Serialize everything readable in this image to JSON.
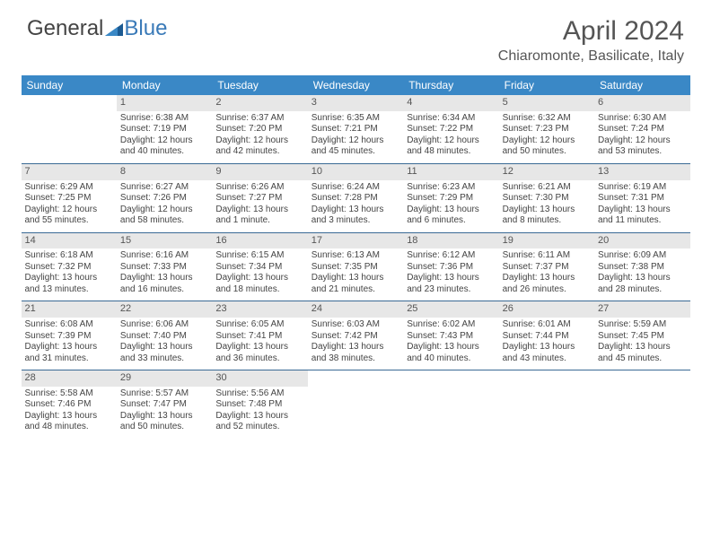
{
  "logo": {
    "part1": "General",
    "part2": "Blue"
  },
  "title": "April 2024",
  "location": "Chiaromonte, Basilicate, Italy",
  "colors": {
    "header_bg": "#3a88c6",
    "header_text": "#ffffff",
    "daynum_bg": "#e7e7e7",
    "border": "#3a6a95",
    "logo_accent": "#3a7ab8"
  },
  "weekdays": [
    "Sunday",
    "Monday",
    "Tuesday",
    "Wednesday",
    "Thursday",
    "Friday",
    "Saturday"
  ],
  "weeks": [
    [
      null,
      {
        "n": "1",
        "sr": "Sunrise: 6:38 AM",
        "ss": "Sunset: 7:19 PM",
        "dl": "Daylight: 12 hours and 40 minutes."
      },
      {
        "n": "2",
        "sr": "Sunrise: 6:37 AM",
        "ss": "Sunset: 7:20 PM",
        "dl": "Daylight: 12 hours and 42 minutes."
      },
      {
        "n": "3",
        "sr": "Sunrise: 6:35 AM",
        "ss": "Sunset: 7:21 PM",
        "dl": "Daylight: 12 hours and 45 minutes."
      },
      {
        "n": "4",
        "sr": "Sunrise: 6:34 AM",
        "ss": "Sunset: 7:22 PM",
        "dl": "Daylight: 12 hours and 48 minutes."
      },
      {
        "n": "5",
        "sr": "Sunrise: 6:32 AM",
        "ss": "Sunset: 7:23 PM",
        "dl": "Daylight: 12 hours and 50 minutes."
      },
      {
        "n": "6",
        "sr": "Sunrise: 6:30 AM",
        "ss": "Sunset: 7:24 PM",
        "dl": "Daylight: 12 hours and 53 minutes."
      }
    ],
    [
      {
        "n": "7",
        "sr": "Sunrise: 6:29 AM",
        "ss": "Sunset: 7:25 PM",
        "dl": "Daylight: 12 hours and 55 minutes."
      },
      {
        "n": "8",
        "sr": "Sunrise: 6:27 AM",
        "ss": "Sunset: 7:26 PM",
        "dl": "Daylight: 12 hours and 58 minutes."
      },
      {
        "n": "9",
        "sr": "Sunrise: 6:26 AM",
        "ss": "Sunset: 7:27 PM",
        "dl": "Daylight: 13 hours and 1 minute."
      },
      {
        "n": "10",
        "sr": "Sunrise: 6:24 AM",
        "ss": "Sunset: 7:28 PM",
        "dl": "Daylight: 13 hours and 3 minutes."
      },
      {
        "n": "11",
        "sr": "Sunrise: 6:23 AM",
        "ss": "Sunset: 7:29 PM",
        "dl": "Daylight: 13 hours and 6 minutes."
      },
      {
        "n": "12",
        "sr": "Sunrise: 6:21 AM",
        "ss": "Sunset: 7:30 PM",
        "dl": "Daylight: 13 hours and 8 minutes."
      },
      {
        "n": "13",
        "sr": "Sunrise: 6:19 AM",
        "ss": "Sunset: 7:31 PM",
        "dl": "Daylight: 13 hours and 11 minutes."
      }
    ],
    [
      {
        "n": "14",
        "sr": "Sunrise: 6:18 AM",
        "ss": "Sunset: 7:32 PM",
        "dl": "Daylight: 13 hours and 13 minutes."
      },
      {
        "n": "15",
        "sr": "Sunrise: 6:16 AM",
        "ss": "Sunset: 7:33 PM",
        "dl": "Daylight: 13 hours and 16 minutes."
      },
      {
        "n": "16",
        "sr": "Sunrise: 6:15 AM",
        "ss": "Sunset: 7:34 PM",
        "dl": "Daylight: 13 hours and 18 minutes."
      },
      {
        "n": "17",
        "sr": "Sunrise: 6:13 AM",
        "ss": "Sunset: 7:35 PM",
        "dl": "Daylight: 13 hours and 21 minutes."
      },
      {
        "n": "18",
        "sr": "Sunrise: 6:12 AM",
        "ss": "Sunset: 7:36 PM",
        "dl": "Daylight: 13 hours and 23 minutes."
      },
      {
        "n": "19",
        "sr": "Sunrise: 6:11 AM",
        "ss": "Sunset: 7:37 PM",
        "dl": "Daylight: 13 hours and 26 minutes."
      },
      {
        "n": "20",
        "sr": "Sunrise: 6:09 AM",
        "ss": "Sunset: 7:38 PM",
        "dl": "Daylight: 13 hours and 28 minutes."
      }
    ],
    [
      {
        "n": "21",
        "sr": "Sunrise: 6:08 AM",
        "ss": "Sunset: 7:39 PM",
        "dl": "Daylight: 13 hours and 31 minutes."
      },
      {
        "n": "22",
        "sr": "Sunrise: 6:06 AM",
        "ss": "Sunset: 7:40 PM",
        "dl": "Daylight: 13 hours and 33 minutes."
      },
      {
        "n": "23",
        "sr": "Sunrise: 6:05 AM",
        "ss": "Sunset: 7:41 PM",
        "dl": "Daylight: 13 hours and 36 minutes."
      },
      {
        "n": "24",
        "sr": "Sunrise: 6:03 AM",
        "ss": "Sunset: 7:42 PM",
        "dl": "Daylight: 13 hours and 38 minutes."
      },
      {
        "n": "25",
        "sr": "Sunrise: 6:02 AM",
        "ss": "Sunset: 7:43 PM",
        "dl": "Daylight: 13 hours and 40 minutes."
      },
      {
        "n": "26",
        "sr": "Sunrise: 6:01 AM",
        "ss": "Sunset: 7:44 PM",
        "dl": "Daylight: 13 hours and 43 minutes."
      },
      {
        "n": "27",
        "sr": "Sunrise: 5:59 AM",
        "ss": "Sunset: 7:45 PM",
        "dl": "Daylight: 13 hours and 45 minutes."
      }
    ],
    [
      {
        "n": "28",
        "sr": "Sunrise: 5:58 AM",
        "ss": "Sunset: 7:46 PM",
        "dl": "Daylight: 13 hours and 48 minutes."
      },
      {
        "n": "29",
        "sr": "Sunrise: 5:57 AM",
        "ss": "Sunset: 7:47 PM",
        "dl": "Daylight: 13 hours and 50 minutes."
      },
      {
        "n": "30",
        "sr": "Sunrise: 5:56 AM",
        "ss": "Sunset: 7:48 PM",
        "dl": "Daylight: 13 hours and 52 minutes."
      },
      null,
      null,
      null,
      null
    ]
  ]
}
